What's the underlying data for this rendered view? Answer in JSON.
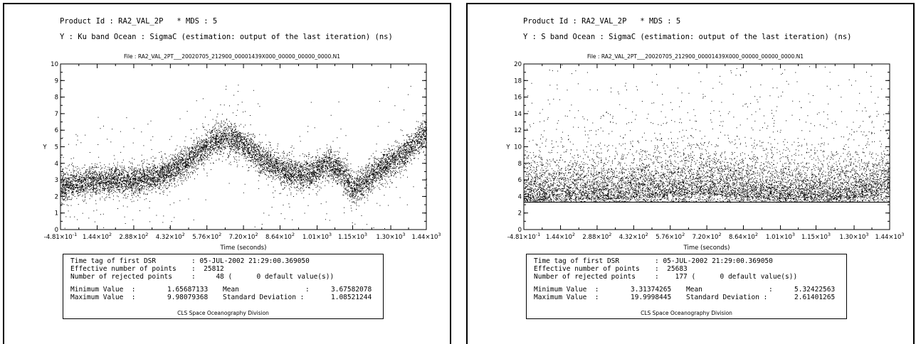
{
  "panels": [
    {
      "product_line": "Product Id : RA2_VAL_2P   * MDS : 5",
      "y_line": "Y : Ku band Ocean : SigmaC (estimation: output of the last iteration) (ns)",
      "file_label": "File : RA2_VAL_2PT___20020705_212900_00001439X000_00000_00000_0000.N1",
      "stats": {
        "time_tag_label": "Time tag of first DSR",
        "time_tag_value": ": 05-JUL-2002 21:29:00.369050",
        "eff_label": "Effective number of points",
        "eff_value": ":  25812",
        "rej_label": "Number of rejected points",
        "rej_value": ":     48 (      0 default value(s))",
        "min_label": "Minimum Value  :",
        "min_value": "1.65687133",
        "max_label": "Maximum Value  :",
        "max_value": "9.98079368",
        "mean_label": "Mean",
        "mean_colon": ":",
        "mean_value": "3.67582078",
        "std_label": "Standard Deviation :",
        "std_value": "1.08521244",
        "credit": "CLS Space Oceanography Division"
      }
    },
    {
      "product_line": "Product Id : RA2_VAL_2P   * MDS : 5",
      "y_line": "Y : S band Ocean : SigmaC (estimation: output of the last iteration) (ns)",
      "file_label": "File : RA2_VAL_2PT___20020705_212900_00001439X000_00000_00000_0000.N1",
      "stats": {
        "time_tag_label": "Time tag of first DSR",
        "time_tag_value": ": 05-JUL-2002 21:29:00.369050",
        "eff_label": "Effective number of points",
        "eff_value": ":  25683",
        "rej_label": "Number of rejected points",
        "rej_value": ":    177 (      0 default value(s))",
        "min_label": "Minimum Value  :",
        "min_value": "3.31374265",
        "max_label": "Maximum Value  :",
        "max_value": "19.9998445",
        "mean_label": "Mean",
        "mean_colon": ":",
        "mean_value": "5.32422563",
        "std_label": "Standard Deviation :",
        "std_value": "2.61401265",
        "credit": "CLS Space Oceanography Division"
      }
    }
  ],
  "chart_data": [
    {
      "type": "scatter",
      "title": "File : RA2_VAL_2PT___20020705_212900_00001439X000_00000_00000_0000.N1",
      "xlabel": "Time (seconds)",
      "ylabel": "Y",
      "xlim": [
        -0.481,
        1440
      ],
      "ylim": [
        0,
        10
      ],
      "x_ticks": [
        -0.481,
        144,
        288,
        432,
        576,
        720,
        864,
        1010,
        1150,
        1300,
        1440
      ],
      "x_tick_mantissas": [
        "-4.81",
        "1.44",
        "2.88",
        "4.32",
        "5.76",
        "7.20",
        "8.64",
        "1.01",
        "1.15",
        "1.30",
        "1.44"
      ],
      "x_tick_exponents": [
        "-1",
        "2",
        "2",
        "2",
        "2",
        "2",
        "2",
        "3",
        "3",
        "3",
        "3"
      ],
      "x_tick_times": "×10",
      "y_ticks": [
        0,
        1,
        2,
        3,
        4,
        5,
        6,
        7,
        8,
        9,
        10
      ],
      "y_tick_labels": [
        "0",
        "1",
        "2",
        "3",
        "4",
        "5",
        "6",
        "7",
        "8",
        "9",
        "10"
      ],
      "trend": {
        "x": [
          0,
          50,
          100,
          150,
          200,
          250,
          300,
          350,
          400,
          450,
          500,
          550,
          600,
          650,
          700,
          750,
          800,
          850,
          900,
          950,
          1000,
          1050,
          1100,
          1150,
          1200,
          1250,
          1300,
          1350,
          1400,
          1440
        ],
        "y": [
          2.6,
          2.8,
          2.9,
          2.95,
          3.0,
          3.0,
          3.05,
          3.1,
          3.3,
          3.7,
          4.2,
          4.8,
          5.3,
          5.6,
          5.4,
          4.8,
          4.2,
          3.8,
          3.4,
          3.3,
          3.5,
          4.0,
          3.6,
          2.4,
          3.0,
          3.6,
          4.1,
          4.6,
          5.3,
          6.0
        ]
      },
      "spread": 0.45,
      "n_points": 25812,
      "grid": false
    },
    {
      "type": "scatter",
      "title": "File : RA2_VAL_2PT___20020705_212900_00001439X000_00000_00000_0000.N1",
      "xlabel": "Time (seconds)",
      "ylabel": "Y",
      "xlim": [
        -0.481,
        1440
      ],
      "ylim": [
        0,
        20
      ],
      "x_ticks": [
        -0.481,
        144,
        288,
        432,
        576,
        720,
        864,
        1010,
        1150,
        1300,
        1440
      ],
      "x_tick_mantissas": [
        "-4.81",
        "1.44",
        "2.88",
        "4.32",
        "5.76",
        "7.20",
        "8.64",
        "1.01",
        "1.15",
        "1.30",
        "1.44"
      ],
      "x_tick_exponents": [
        "-1",
        "2",
        "2",
        "2",
        "2",
        "2",
        "2",
        "3",
        "3",
        "3",
        "3"
      ],
      "x_tick_times": "×10",
      "y_ticks": [
        0,
        2,
        4,
        6,
        8,
        10,
        12,
        14,
        16,
        18,
        20
      ],
      "y_tick_labels": [
        "0",
        "2",
        "4",
        "6",
        "8",
        "10",
        "12",
        "14",
        "16",
        "18",
        "20"
      ],
      "floor": 3.31,
      "trend": {
        "x": [
          0,
          200,
          400,
          600,
          700,
          800,
          1000,
          1200,
          1400,
          1440
        ],
        "y": [
          5.0,
          5.1,
          5.3,
          5.6,
          5.8,
          5.5,
          5.2,
          5.1,
          5.6,
          6.5
        ]
      },
      "spread": 2.6,
      "n_points": 25683,
      "grid": false
    }
  ]
}
